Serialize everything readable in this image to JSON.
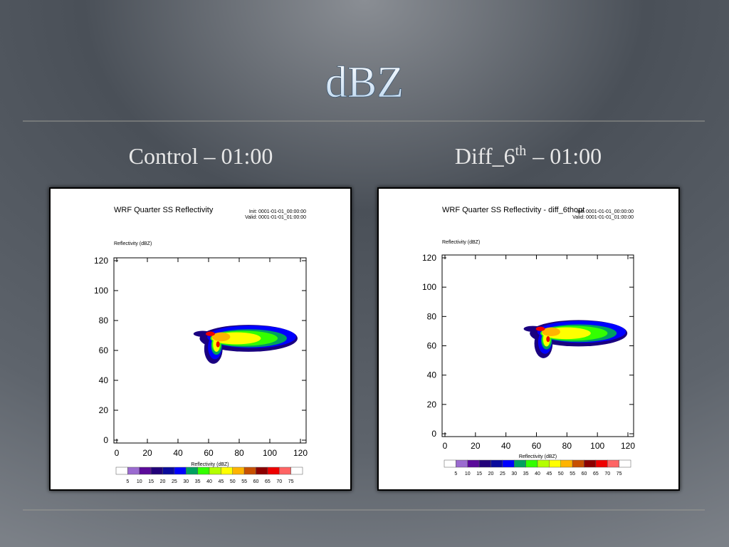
{
  "slide": {
    "title": "dBZ"
  },
  "panels": [
    {
      "caption": "Control – 01:00",
      "plot_title": "WRF Quarter SS Reflectivity",
      "init": "Init: 0001-01-01_00:00:00",
      "valid": "Valid: 0001-01-01_01:00:00",
      "y_label": "Reflectivity  (dBZ)",
      "x_label": "Reflectivity  (dBZ)",
      "xticks": [
        0,
        20,
        40,
        60,
        80,
        100,
        120
      ],
      "yticks": [
        0,
        20,
        40,
        60,
        80,
        100,
        120
      ],
      "colorbar_labels": [
        5,
        10,
        15,
        20,
        25,
        30,
        35,
        40,
        45,
        50,
        55,
        60,
        65,
        70,
        75
      ]
    },
    {
      "caption": {
        "base": "Diff_6",
        "sup": "th",
        "rest": "– 01:00"
      },
      "plot_title": "WRF Quarter SS Reflectivity - diff_6thopt",
      "init": "Init: 0001-01-01_00:00:00",
      "valid": "Valid: 0001-01-01_01:00:00",
      "y_label": "Reflectivity  (dBZ)",
      "x_label": "Reflectivity  (dBZ)",
      "xticks": [
        0,
        20,
        40,
        60,
        80,
        100,
        120
      ],
      "yticks": [
        0,
        20,
        40,
        60,
        80,
        100,
        120
      ],
      "colorbar_labels": [
        5,
        10,
        15,
        20,
        25,
        30,
        35,
        40,
        45,
        50,
        55,
        60,
        65,
        70,
        75
      ]
    }
  ]
}
